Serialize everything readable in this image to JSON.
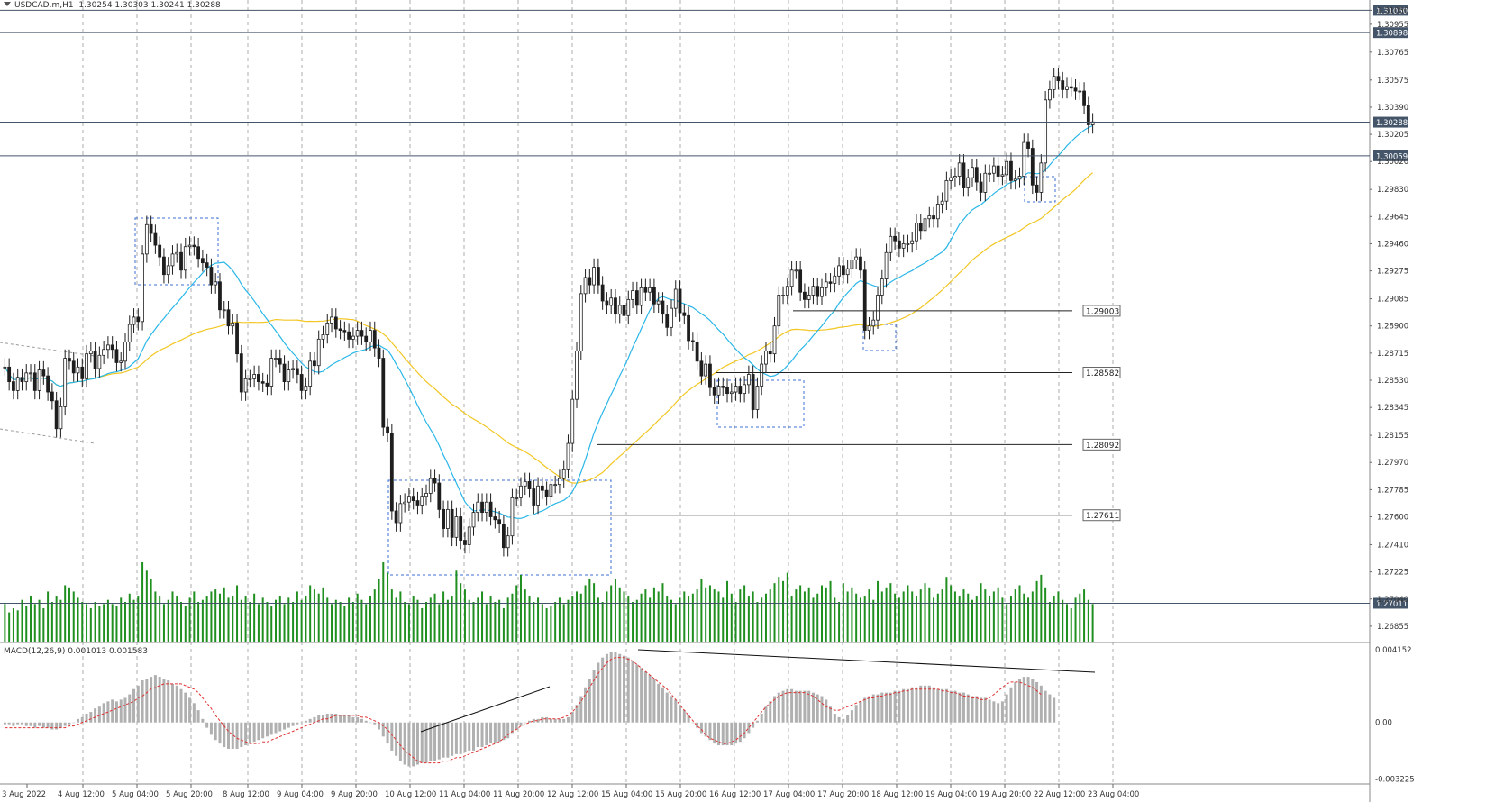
{
  "header": {
    "symbol": "USDCAD.m,H1",
    "ohlc": "1.30254 1.30303 1.30241 1.30288"
  },
  "macd": {
    "label": "MACD(12,26,9) 0.001013 0.001583",
    "levels": [
      "0.004152",
      "0.00",
      "-0.003225"
    ]
  },
  "colors": {
    "bull_candle": "#1e1e1e",
    "bear_candle": "#1e1e1e",
    "ma_fast": "#29b6e8",
    "ma_slow": "#f2c623",
    "volume": "#1f8f1f",
    "macd_hist": "#b0b0b0",
    "macd_signal": "#e03030",
    "grid": "#6b6b6b",
    "box": "#3c6fd6"
  },
  "chart_data": {
    "type": "candlestick",
    "symbol": "USDCAD.m",
    "timeframe": "H1",
    "ylim": [
      1.268,
      1.312
    ],
    "y_ticks": [
      "1.31050",
      "1.30955",
      "1.30765",
      "1.30575",
      "1.30390",
      "1.30205",
      "1.30020",
      "1.29830",
      "1.29645",
      "1.29460",
      "1.29275",
      "1.29085",
      "1.28900",
      "1.28715",
      "1.28530",
      "1.28345",
      "1.28155",
      "1.27970",
      "1.27785",
      "1.27600",
      "1.27410",
      "1.27225",
      "1.27040",
      "1.26855"
    ],
    "x_ticks": [
      "3 Aug 2022",
      "4 Aug 12:00",
      "5 Aug 04:00",
      "5 Aug 20:00",
      "8 Aug 12:00",
      "9 Aug 04:00",
      "9 Aug 20:00",
      "10 Aug 12:00",
      "11 Aug 04:00",
      "11 Aug 20:00",
      "12 Aug 12:00",
      "15 Aug 04:00",
      "15 Aug 20:00",
      "16 Aug 12:00",
      "17 Aug 04:00",
      "17 Aug 20:00",
      "18 Aug 12:00",
      "19 Aug 04:00",
      "19 Aug 20:00",
      "22 Aug 12:00",
      "23 Aug 04:00"
    ],
    "horizontal_levels": [
      {
        "price": 1.3105,
        "label": "1.31050"
      },
      {
        "price": 1.30898,
        "label": "1.30898"
      },
      {
        "price": 1.30288,
        "label": "1.30288"
      },
      {
        "price": 1.30059,
        "label": "1.30059"
      },
      {
        "price": 1.27011,
        "label": "1.27011"
      }
    ],
    "support_lines": [
      {
        "price": 1.29003,
        "label": "1.29003"
      },
      {
        "price": 1.28582,
        "label": "1.28582"
      },
      {
        "price": 1.28092,
        "label": "1.28092"
      },
      {
        "price": 1.27611,
        "label": "1.27611"
      }
    ],
    "series": [
      {
        "kind": "close",
        "values": [
          1.2862,
          1.2852,
          1.2846,
          1.2855,
          1.2852,
          1.2858,
          1.2858,
          1.2846,
          1.286,
          1.2856,
          1.2845,
          1.2839,
          1.282,
          1.2835,
          1.2868,
          1.2866,
          1.2858,
          1.2862,
          1.2854,
          1.2871,
          1.2873,
          1.2861,
          1.287,
          1.2874,
          1.2877,
          1.2874,
          1.2865,
          1.2866,
          1.2879,
          1.2891,
          1.2896,
          1.2893,
          1.2939,
          1.2959,
          1.2953,
          1.2945,
          1.2937,
          1.2925,
          1.2931,
          1.2939,
          1.294,
          1.2928,
          1.2944,
          1.2945,
          1.2944,
          1.2936,
          1.2933,
          1.293,
          1.2918,
          1.292,
          1.2901,
          1.2901,
          1.289,
          1.2892,
          1.2871,
          1.2845,
          1.2854,
          1.2854,
          1.2857,
          1.2852,
          1.2851,
          1.2849,
          1.2868,
          1.2868,
          1.2864,
          1.2852,
          1.286,
          1.2861,
          1.2857,
          1.2846,
          1.2849,
          1.2866,
          1.2863,
          1.2881,
          1.2884,
          1.2892,
          1.2896,
          1.2888,
          1.2887,
          1.2886,
          1.2881,
          1.2883,
          1.2887,
          1.2883,
          1.2879,
          1.2887,
          1.2875,
          1.2868,
          1.2821,
          1.2817,
          1.2764,
          1.2756,
          1.2769,
          1.277,
          1.2774,
          1.2771,
          1.2768,
          1.2774,
          1.2776,
          1.2786,
          1.2783,
          1.2765,
          1.2752,
          1.2765,
          1.2746,
          1.276,
          1.2744,
          1.2741,
          1.2753,
          1.2763,
          1.277,
          1.2763,
          1.277,
          1.276,
          1.2758,
          1.2755,
          1.2739,
          1.2747,
          1.2773,
          1.2773,
          1.2781,
          1.2784,
          1.2779,
          1.2768,
          1.2781,
          1.2778,
          1.2774,
          1.2782,
          1.2782,
          1.2786,
          1.2792,
          1.281,
          1.284,
          1.2873,
          1.2912,
          1.2923,
          1.2918,
          1.293,
          1.2918,
          1.2907,
          1.2904,
          1.2909,
          1.2898,
          1.2904,
          1.2897,
          1.2908,
          1.2914,
          1.2904,
          1.2916,
          1.2913,
          1.2916,
          1.2905,
          1.2907,
          1.2898,
          1.2889,
          1.2902,
          1.2915,
          1.2899,
          1.2897,
          1.288,
          1.2879,
          1.2866,
          1.2856,
          1.2864,
          1.2848,
          1.2843,
          1.2849,
          1.2848,
          1.2844,
          1.2845,
          1.2849,
          1.2844,
          1.285,
          1.2857,
          1.2833,
          1.2849,
          1.2864,
          1.2873,
          1.2871,
          1.289,
          1.2911,
          1.2911,
          1.2917,
          1.2928,
          1.2928,
          1.2913,
          1.2908,
          1.2911,
          1.2917,
          1.291,
          1.2916,
          1.292,
          1.2919,
          1.2924,
          1.2931,
          1.2925,
          1.2929,
          1.2935,
          1.2937,
          1.2928,
          1.2887,
          1.289,
          1.2894,
          1.2911,
          1.2922,
          1.294,
          1.2951,
          1.2948,
          1.2943,
          1.2946,
          1.2946,
          1.2948,
          1.296,
          1.2955,
          1.2963,
          1.2965,
          1.2963,
          1.2973,
          1.2975,
          1.2989,
          1.2991,
          1.2992,
          1.3001,
          1.2984,
          1.2991,
          1.2998,
          1.2988,
          1.2981,
          1.2994,
          1.2994,
          1.2999,
          1.2992,
          1.2993,
          1.3002,
          1.2989,
          1.299,
          1.2992,
          1.3015,
          1.3011,
          1.2986,
          1.2981,
          1.3001,
          1.3044,
          1.3051,
          1.306,
          1.3057,
          1.3051,
          1.3053,
          1.3052,
          1.305,
          1.305,
          1.304,
          1.3027,
          1.3029
        ]
      },
      {
        "kind": "ma_fast",
        "name": ""
      },
      {
        "kind": "ma_slow",
        "name": ""
      }
    ],
    "volume": [
      18,
      14,
      16,
      15,
      20,
      17,
      22,
      18,
      20,
      16,
      24,
      19,
      22,
      20,
      27,
      26,
      24,
      21,
      19,
      18,
      16,
      19,
      17,
      18,
      20,
      18,
      17,
      21,
      19,
      23,
      20,
      22,
      38,
      34,
      30,
      24,
      22,
      18,
      20,
      24,
      22,
      19,
      17,
      21,
      24,
      19,
      20,
      22,
      24,
      25,
      23,
      26,
      21,
      22,
      27,
      20,
      22,
      19,
      23,
      18,
      21,
      19,
      17,
      20,
      22,
      18,
      21,
      19,
      24,
      20,
      22,
      27,
      25,
      23,
      26,
      21,
      18,
      20,
      19,
      17,
      21,
      19,
      23,
      20,
      18,
      22,
      25,
      30,
      38,
      33,
      25,
      21,
      24,
      19,
      18,
      22,
      20,
      16,
      19,
      21,
      23,
      18,
      24,
      20,
      22,
      34,
      28,
      25,
      20,
      19,
      21,
      24,
      18,
      22,
      19,
      20,
      16,
      21,
      23,
      27,
      32,
      25,
      22,
      19,
      21,
      18,
      16,
      17,
      19,
      21,
      18,
      20,
      22,
      24,
      23,
      27,
      30,
      28,
      21,
      19,
      24,
      27,
      30,
      26,
      24,
      22,
      19,
      20,
      23,
      25,
      21,
      26,
      24,
      28,
      22,
      20,
      18,
      21,
      24,
      22,
      23,
      25,
      30,
      26,
      27,
      25,
      24,
      21,
      29,
      23,
      19,
      25,
      27,
      22,
      24,
      19,
      21,
      23,
      25,
      28,
      31,
      29,
      33,
      22,
      25,
      27,
      24,
      26,
      21,
      23,
      27,
      26,
      29,
      21,
      19,
      28,
      24,
      26,
      23,
      21,
      22,
      25,
      20,
      29,
      24,
      26,
      28,
      23,
      21,
      24,
      27,
      24,
      22,
      25,
      28,
      26,
      21,
      23,
      25,
      31,
      27,
      24,
      22,
      25,
      23,
      20,
      22,
      28,
      25,
      22,
      24,
      26,
      21,
      18,
      22,
      25,
      27,
      23,
      21,
      24,
      29,
      32,
      26,
      19,
      22,
      24,
      20,
      18,
      16,
      21,
      23,
      25,
      20,
      18
    ],
    "macd_hist": [
      -0.0001,
      -0.0001,
      -0.0002,
      -0.0001,
      -0.0001,
      -0.0002,
      -0.0002,
      -0.0003,
      -0.0002,
      -0.0003,
      -0.0003,
      -0.0004,
      -0.0004,
      -0.0003,
      -0.0002,
      -0.0001,
      0.0,
      0.0002,
      0.0003,
      0.0005,
      0.0006,
      0.0008,
      0.0009,
      0.0011,
      0.0012,
      0.0013,
      0.0012,
      0.0013,
      0.0014,
      0.0016,
      0.0019,
      0.0021,
      0.0024,
      0.0025,
      0.0026,
      0.0027,
      0.0026,
      0.0025,
      0.0024,
      0.0022,
      0.0021,
      0.0019,
      0.0017,
      0.0014,
      0.0011,
      0.0007,
      0.0002,
      -0.0003,
      -0.0007,
      -0.001,
      -0.0012,
      -0.0014,
      -0.0015,
      -0.0015,
      -0.0015,
      -0.0014,
      -0.0013,
      -0.0012,
      -0.0011,
      -0.001,
      -0.0009,
      -0.0008,
      -0.0007,
      -0.0006,
      -0.0005,
      -0.0004,
      -0.0003,
      -0.0002,
      -0.0001,
      0.0,
      0.0001,
      0.0002,
      0.0003,
      0.0004,
      0.0004,
      0.0005,
      0.0005,
      0.0005,
      0.0004,
      0.0004,
      0.0004,
      0.0003,
      0.0003,
      0.0002,
      0.0001,
      0.0,
      -0.0001,
      -0.0004,
      -0.0008,
      -0.0012,
      -0.0016,
      -0.0019,
      -0.0022,
      -0.0024,
      -0.0025,
      -0.0025,
      -0.0024,
      -0.0023,
      -0.0023,
      -0.0022,
      -0.0022,
      -0.0021,
      -0.002,
      -0.002,
      -0.0019,
      -0.0018,
      -0.0018,
      -0.0017,
      -0.0016,
      -0.0016,
      -0.0014,
      -0.0014,
      -0.0013,
      -0.0012,
      -0.0012,
      -0.0011,
      -0.001,
      -0.0009,
      -0.0006,
      -0.0004,
      -0.0002,
      0.0,
      0.0001,
      0.0002,
      0.0002,
      0.0003,
      0.0003,
      0.0002,
      0.0002,
      0.0002,
      0.0002,
      0.0003,
      0.0006,
      0.001,
      0.0015,
      0.002,
      0.0025,
      0.003,
      0.0034,
      0.0037,
      0.0039,
      0.004,
      0.004,
      0.0039,
      0.0038,
      0.0037,
      0.0035,
      0.0033,
      0.0031,
      0.0029,
      0.0027,
      0.0025,
      0.0022,
      0.002,
      0.0017,
      0.0015,
      0.0013,
      0.001,
      0.0007,
      0.0004,
      0.0,
      -0.0003,
      -0.0006,
      -0.0008,
      -0.001,
      -0.0012,
      -0.0013,
      -0.0013,
      -0.0013,
      -0.0013,
      -0.0012,
      -0.0011,
      -0.0009,
      -0.0006,
      -0.0003,
      0.0001,
      0.0005,
      0.0009,
      0.0012,
      0.0015,
      0.0017,
      0.0018,
      0.0019,
      0.0019,
      0.0018,
      0.0018,
      0.0018,
      0.0018,
      0.0017,
      0.0016,
      0.0015,
      0.0013,
      0.0009,
      0.0005,
      0.0003,
      0.0002,
      0.0004,
      0.0007,
      0.001,
      0.0012,
      0.0014,
      0.0015,
      0.0016,
      0.0016,
      0.0017,
      0.0017,
      0.0017,
      0.0018,
      0.0018,
      0.0019,
      0.0019,
      0.002,
      0.002,
      0.0021,
      0.0021,
      0.0021,
      0.002,
      0.0019,
      0.0019,
      0.0019,
      0.0018,
      0.0018,
      0.0017,
      0.0017,
      0.0016,
      0.0015,
      0.0015,
      0.0014,
      0.0014,
      0.0013,
      0.0012,
      0.0011,
      0.0012,
      0.0016,
      0.002,
      0.0023,
      0.0025,
      0.0026,
      0.0026,
      0.0025,
      0.0023,
      0.0021,
      0.0018,
      0.0016,
      0.0014
    ],
    "macd_signal": [
      -0.0003,
      -0.0003,
      -0.0003,
      -0.0003,
      -0.0003,
      -0.0003,
      -0.0003,
      -0.0003,
      -0.0003,
      -0.0003,
      -0.0003,
      -0.0003,
      -0.0003,
      -0.0003,
      -0.0003,
      -0.0002,
      -0.0002,
      -0.0001,
      0.0,
      0.0001,
      0.0002,
      0.0003,
      0.0004,
      0.0005,
      0.0006,
      0.0007,
      0.0008,
      0.0009,
      0.001,
      0.0011,
      0.0012,
      0.0014,
      0.0015,
      0.0017,
      0.0019,
      0.002,
      0.0021,
      0.0022,
      0.0022,
      0.0022,
      0.0022,
      0.0022,
      0.0021,
      0.002,
      0.0019,
      0.0017,
      0.0014,
      0.0011,
      0.0008,
      0.0004,
      0.0001,
      -0.0002,
      -0.0005,
      -0.0007,
      -0.0009,
      -0.001,
      -0.0011,
      -0.0012,
      -0.0012,
      -0.0012,
      -0.0011,
      -0.0011,
      -0.001,
      -0.0009,
      -0.0008,
      -0.0007,
      -0.0006,
      -0.0005,
      -0.0004,
      -0.0003,
      -0.0002,
      -0.0001,
      0.0,
      0.0001,
      0.0002,
      0.0002,
      0.0003,
      0.0004,
      0.0004,
      0.0004,
      0.0004,
      0.0004,
      0.0004,
      0.0003,
      0.0003,
      0.0002,
      0.0001,
      0.0,
      -0.0002,
      -0.0004,
      -0.0007,
      -0.001,
      -0.0013,
      -0.0016,
      -0.0018,
      -0.002,
      -0.0022,
      -0.0023,
      -0.0023,
      -0.0023,
      -0.0023,
      -0.0023,
      -0.0022,
      -0.0022,
      -0.0021,
      -0.002,
      -0.002,
      -0.0019,
      -0.0018,
      -0.0017,
      -0.0016,
      -0.0015,
      -0.0014,
      -0.0013,
      -0.0012,
      -0.0011,
      -0.0009,
      -0.0007,
      -0.0005,
      -0.0004,
      -0.0002,
      -0.0001,
      0.0,
      0.0001,
      0.0001,
      0.0002,
      0.0002,
      0.0002,
      0.0002,
      0.0002,
      0.0003,
      0.0004,
      0.0006,
      0.0009,
      0.0012,
      0.0016,
      0.002,
      0.0024,
      0.0028,
      0.0031,
      0.0034,
      0.0036,
      0.0037,
      0.0037,
      0.0037,
      0.0036,
      0.0035,
      0.0033,
      0.0031,
      0.0029,
      0.0027,
      0.0025,
      0.0023,
      0.0021,
      0.0019,
      0.0016,
      0.0013,
      0.001,
      0.0007,
      0.0004,
      0.0001,
      -0.0002,
      -0.0004,
      -0.0007,
      -0.0009,
      -0.001,
      -0.0011,
      -0.0012,
      -0.0012,
      -0.0011,
      -0.001,
      -0.0008,
      -0.0006,
      -0.0003,
      0.0,
      0.0003,
      0.0006,
      0.0009,
      0.0011,
      0.0013,
      0.0015,
      0.0016,
      0.0017,
      0.0017,
      0.0017,
      0.0017,
      0.0017,
      0.0016,
      0.0015,
      0.0013,
      0.0011,
      0.0009,
      0.0008,
      0.0007,
      0.0007,
      0.0008,
      0.0009,
      0.001,
      0.0011,
      0.0012,
      0.0013,
      0.0014,
      0.0014,
      0.0015,
      0.0015,
      0.0016,
      0.0016,
      0.0017,
      0.0017,
      0.0018,
      0.0018,
      0.0019,
      0.0019,
      0.0019,
      0.0019,
      0.0019,
      0.0019,
      0.0019,
      0.0018,
      0.0018,
      0.0017,
      0.0017,
      0.0016,
      0.0015,
      0.0015,
      0.0014,
      0.0014,
      0.0013,
      0.0013,
      0.0014,
      0.0016,
      0.0018,
      0.002,
      0.0022,
      0.0023,
      0.0023,
      0.0023,
      0.0022,
      0.0021,
      0.002,
      0.0018,
      0.0016
    ]
  }
}
